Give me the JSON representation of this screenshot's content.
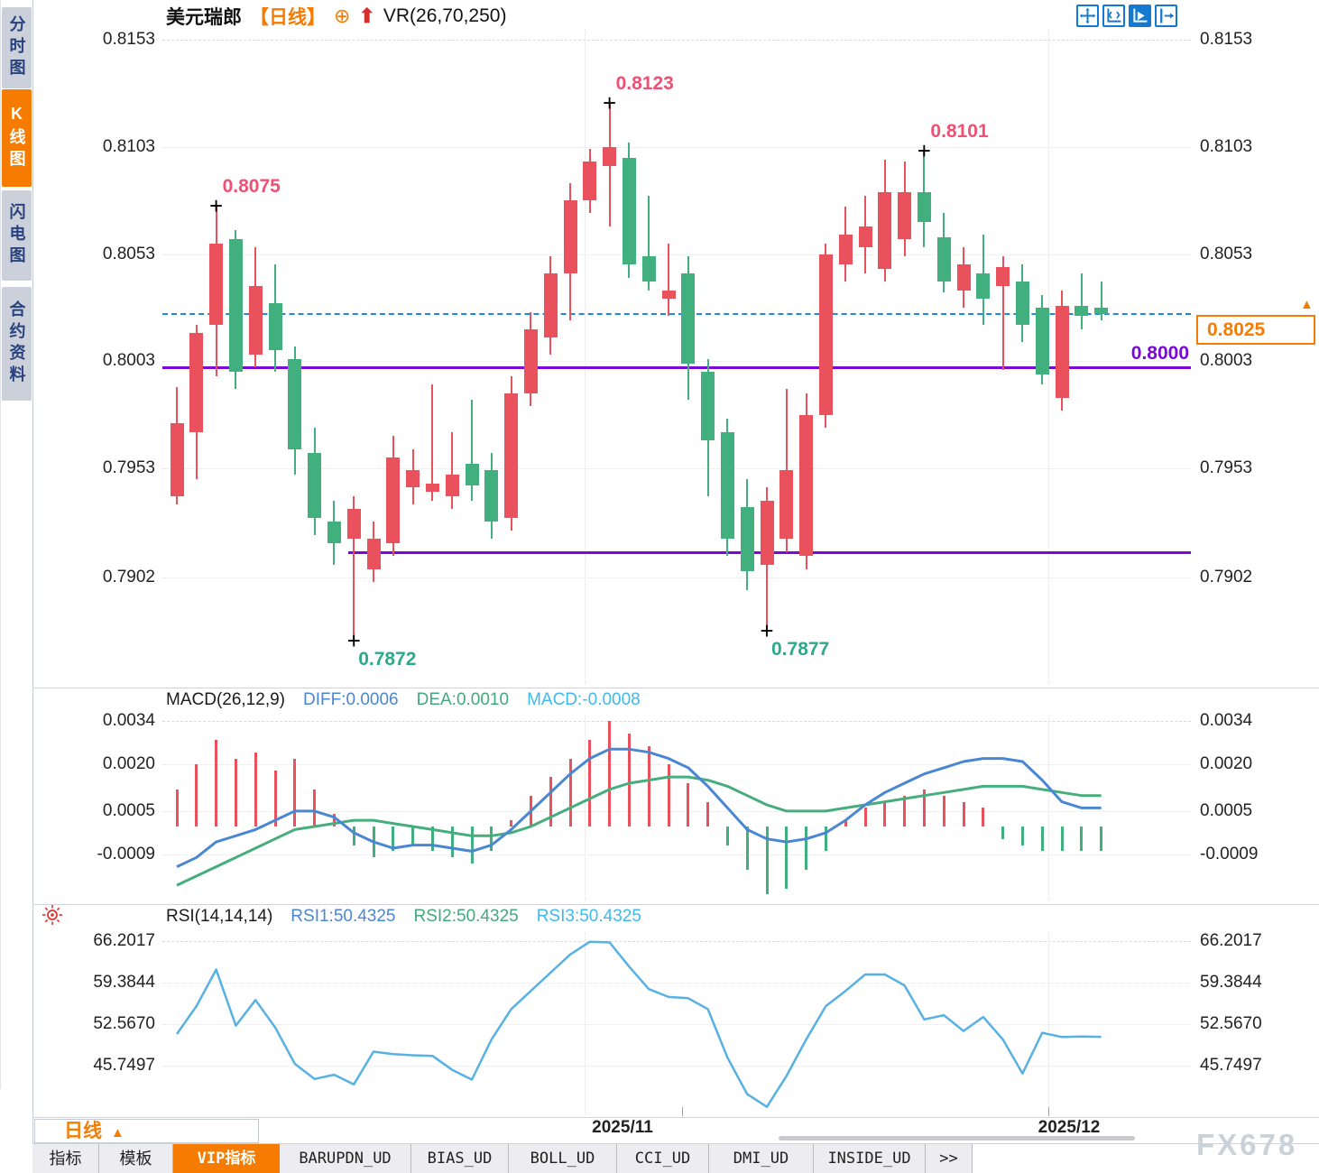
{
  "colors": {
    "up": "#e9515c",
    "down": "#42af7e",
    "diff_line": "#4a87d3",
    "dea_line": "#46ad7c",
    "rsi_line": "#58b1e3",
    "current_price_line": "#1f87e8",
    "support_line": "#7b08d8",
    "accent_orange": "#f57c00",
    "annotation_high": "#ef5073",
    "annotation_low": "#2ea98a"
  },
  "sidebar": {
    "tabs": [
      {
        "label": "分时图",
        "active": false
      },
      {
        "label": "K线图",
        "active": true
      },
      {
        "label": "闪电图",
        "active": false
      },
      {
        "label": "合约资料",
        "active": false
      }
    ]
  },
  "header": {
    "symbol": "美元瑞郎",
    "period": "【日线】",
    "plus_icon": "⊕",
    "arrow_icon": "⬆",
    "indicator": "VR(26,70,250)"
  },
  "top_buttons": [
    {
      "name": "pan",
      "active": false
    },
    {
      "name": "axis-zoom",
      "active": false
    },
    {
      "name": "playback",
      "active": true
    },
    {
      "name": "page-forward",
      "active": false
    }
  ],
  "chart_data": {
    "type": "candlestick",
    "symbol": "美元瑞郎",
    "interval": "日线",
    "price_axis_labels": [
      "0.8153",
      "0.8103",
      "0.8053",
      "0.8003",
      "0.7953",
      "0.7902"
    ],
    "price_axis_values": [
      0.8153,
      0.8103,
      0.8053,
      0.8003,
      0.7953,
      0.7902
    ],
    "current_price": 0.8025,
    "current_price_label": "0.8025",
    "support_lines": [
      {
        "value": 0.8,
        "label": "0.8000"
      },
      {
        "value": 0.7914,
        "label": ""
      }
    ],
    "x_labels": [
      {
        "text": "2025/11"
      },
      {
        "text": "2025/12"
      }
    ],
    "candles": [
      [
        0.794,
        0.7991,
        0.7936,
        0.7974
      ],
      [
        0.797,
        0.802,
        0.7948,
        0.8016
      ],
      [
        0.802,
        0.8075,
        0.7996,
        0.8058
      ],
      [
        0.806,
        0.8064,
        0.799,
        0.7998
      ],
      [
        0.8006,
        0.8056,
        0.8,
        0.8038
      ],
      [
        0.803,
        0.8048,
        0.7998,
        0.8008
      ],
      [
        0.8004,
        0.801,
        0.795,
        0.7962
      ],
      [
        0.796,
        0.7972,
        0.7922,
        0.793
      ],
      [
        0.7928,
        0.7938,
        0.7908,
        0.7918
      ],
      [
        0.792,
        0.794,
        0.7872,
        0.7934
      ],
      [
        0.7906,
        0.7928,
        0.79,
        0.792
      ],
      [
        0.7918,
        0.7968,
        0.7912,
        0.7958
      ],
      [
        0.7944,
        0.7962,
        0.7936,
        0.7952
      ],
      [
        0.7942,
        0.7992,
        0.7938,
        0.7946
      ],
      [
        0.794,
        0.797,
        0.7934,
        0.795
      ],
      [
        0.7955,
        0.7985,
        0.7938,
        0.7945
      ],
      [
        0.7952,
        0.796,
        0.792,
        0.7928
      ],
      [
        0.793,
        0.7996,
        0.7924,
        0.7988
      ],
      [
        0.7988,
        0.8026,
        0.7982,
        0.8018
      ],
      [
        0.8014,
        0.8052,
        0.8006,
        0.8044
      ],
      [
        0.8044,
        0.8086,
        0.8022,
        0.8078
      ],
      [
        0.8078,
        0.8102,
        0.8072,
        0.8096
      ],
      [
        0.8094,
        0.8123,
        0.8066,
        0.8103
      ],
      [
        0.8098,
        0.8105,
        0.8042,
        0.8048
      ],
      [
        0.8052,
        0.808,
        0.8036,
        0.804
      ],
      [
        0.8032,
        0.8058,
        0.8024,
        0.8036
      ],
      [
        0.8044,
        0.8052,
        0.7985,
        0.8002
      ],
      [
        0.7998,
        0.8004,
        0.794,
        0.7966
      ],
      [
        0.797,
        0.7976,
        0.7912,
        0.792
      ],
      [
        0.7935,
        0.7948,
        0.7896,
        0.7905
      ],
      [
        0.7908,
        0.7944,
        0.7877,
        0.7938
      ],
      [
        0.792,
        0.799,
        0.7914,
        0.7952
      ],
      [
        0.7912,
        0.7988,
        0.7906,
        0.7978
      ],
      [
        0.7978,
        0.8058,
        0.7972,
        0.8053
      ],
      [
        0.8048,
        0.8075,
        0.804,
        0.8062
      ],
      [
        0.8056,
        0.808,
        0.8044,
        0.8066
      ],
      [
        0.8046,
        0.8097,
        0.804,
        0.8082
      ],
      [
        0.806,
        0.8096,
        0.8052,
        0.8082
      ],
      [
        0.8082,
        0.8101,
        0.8056,
        0.8068
      ],
      [
        0.8061,
        0.8072,
        0.8035,
        0.804
      ],
      [
        0.8036,
        0.8056,
        0.8028,
        0.8048
      ],
      [
        0.8044,
        0.8062,
        0.802,
        0.8032
      ],
      [
        0.8038,
        0.8052,
        0.7999,
        0.8047
      ],
      [
        0.804,
        0.8048,
        0.8012,
        0.802
      ],
      [
        0.8028,
        0.8034,
        0.7992,
        0.7997
      ],
      [
        0.7986,
        0.8036,
        0.798,
        0.8029
      ],
      [
        0.8029,
        0.8044,
        0.8018,
        0.8024
      ],
      [
        0.8028,
        0.804,
        0.8022,
        0.8025
      ]
    ],
    "annotations": [
      {
        "index": 2,
        "kind": "high",
        "text": "0.8075"
      },
      {
        "index": 9,
        "kind": "low",
        "text": "0.7872"
      },
      {
        "index": 22,
        "kind": "high",
        "text": "0.8123"
      },
      {
        "index": 30,
        "kind": "low",
        "text": "0.7877"
      },
      {
        "index": 38,
        "kind": "high",
        "text": "0.8101"
      }
    ],
    "macd": {
      "title": "MACD(26,12,9)",
      "diff_label": "DIFF:0.0006",
      "dea_label": "DEA:0.0010",
      "macd_label": "MACD:-0.0008",
      "axis_labels": [
        "0.0034",
        "0.0020",
        "0.0005",
        "-0.0009"
      ],
      "axis_values": [
        0.0034,
        0.002,
        0.0005,
        -0.0009
      ],
      "diff": [
        -0.0013,
        -0.001,
        -0.0005,
        -0.0003,
        -0.0001,
        0.0002,
        0.0005,
        0.0005,
        0.0003,
        -0.0002,
        -0.0005,
        -0.0007,
        -0.0006,
        -0.0006,
        -0.0007,
        -0.0008,
        -0.0006,
        -0.0001,
        0.0005,
        0.0011,
        0.0017,
        0.0022,
        0.0025,
        0.0025,
        0.0024,
        0.0022,
        0.0019,
        0.0013,
        0.0006,
        -0.0001,
        -0.0004,
        -0.0005,
        -0.0004,
        -0.0002,
        0.0002,
        0.0007,
        0.0011,
        0.0014,
        0.0017,
        0.0019,
        0.0021,
        0.0022,
        0.0022,
        0.0021,
        0.0015,
        0.0008,
        0.0006,
        0.0006
      ],
      "dea": [
        -0.0019,
        -0.0016,
        -0.0013,
        -0.001,
        -0.0007,
        -0.0004,
        -0.0001,
        0.0,
        0.0001,
        0.0002,
        0.0002,
        0.0001,
        0.0,
        -0.0001,
        -0.0002,
        -0.0003,
        -0.0003,
        -0.0002,
        0.0,
        0.0003,
        0.0006,
        0.0009,
        0.0012,
        0.0014,
        0.0015,
        0.0016,
        0.0016,
        0.0015,
        0.0013,
        0.001,
        0.0007,
        0.0005,
        0.0005,
        0.0005,
        0.0006,
        0.0007,
        0.0008,
        0.0009,
        0.001,
        0.0011,
        0.0012,
        0.0013,
        0.0013,
        0.0013,
        0.0012,
        0.0011,
        0.001,
        0.001
      ],
      "hist": [
        0.0012,
        0.002,
        0.0028,
        0.0022,
        0.0024,
        0.0018,
        0.0022,
        0.0012,
        0.0004,
        -0.0006,
        -0.001,
        -0.0008,
        -0.0006,
        -0.0008,
        -0.001,
        -0.0012,
        -0.0008,
        0.0002,
        0.001,
        0.0016,
        0.0022,
        0.0028,
        0.0034,
        0.003,
        0.0026,
        0.002,
        0.0014,
        0.0008,
        -0.0006,
        -0.0014,
        -0.0022,
        -0.002,
        -0.0014,
        -0.0008,
        0.0002,
        0.0006,
        0.0008,
        0.001,
        0.0012,
        0.001,
        0.0008,
        0.0006,
        -0.0004,
        -0.0006,
        -0.0008,
        -0.0008,
        -0.0008,
        -0.0008
      ]
    },
    "rsi": {
      "title": "RSI(14,14,14)",
      "rsi1_label": "RSI1:50.4325",
      "rsi2_label": "RSI2:50.4325",
      "rsi3_label": "RSI3:50.4325",
      "axis_labels": [
        "66.2017",
        "59.3844",
        "52.5670",
        "45.7497"
      ],
      "axis_values": [
        66.2017,
        59.3844,
        52.567,
        45.7497
      ],
      "values": [
        50.9,
        55.5,
        61.5,
        52.3,
        56.5,
        52.0,
        46.0,
        43.5,
        44.2,
        42.6,
        48.0,
        47.6,
        47.4,
        47.3,
        45.0,
        43.4,
        50.0,
        55.0,
        58.0,
        61.0,
        64.0,
        66.1,
        66.0,
        62.0,
        58.3,
        57.0,
        56.8,
        55.0,
        47.0,
        41.0,
        38.9,
        44.0,
        50.0,
        55.5,
        58.0,
        60.7,
        60.7,
        58.9,
        53.3,
        54.0,
        51.4,
        53.7,
        50.0,
        44.4,
        51.1,
        50.4,
        50.5,
        50.43
      ]
    }
  },
  "bottom": {
    "period_button": {
      "label": "日线",
      "arrow": "▲"
    },
    "tabs": [
      {
        "label": "指标",
        "active": false
      },
      {
        "label": "模板",
        "active": false
      },
      {
        "label": "VIP指标",
        "active": true
      },
      {
        "label": "BARUPDN_UD",
        "active": false
      },
      {
        "label": "BIAS_UD",
        "active": false
      },
      {
        "label": "BOLL_UD",
        "active": false
      },
      {
        "label": "CCI_UD",
        "active": false
      },
      {
        "label": "DMI_UD",
        "active": false
      },
      {
        "label": "INSIDE_UD",
        "active": false
      },
      {
        "label": ">>",
        "active": false
      }
    ],
    "watermark": "FX678"
  }
}
